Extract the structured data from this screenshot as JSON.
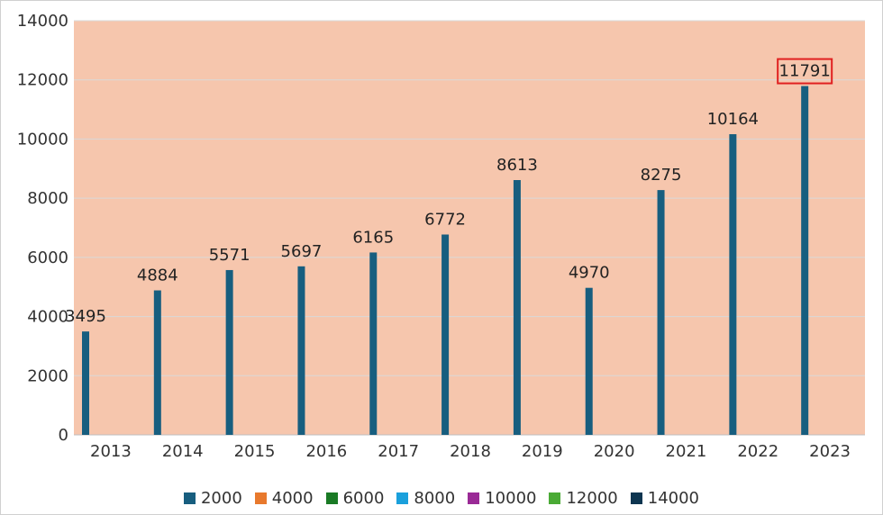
{
  "chart_data": {
    "type": "bar",
    "categories": [
      "2013",
      "2014",
      "2015",
      "2016",
      "2017",
      "2018",
      "2019",
      "2020",
      "2021",
      "2022",
      "2023"
    ],
    "series": [
      {
        "name": "2000",
        "values": [
          3495,
          4884,
          5571,
          5697,
          6165,
          6772,
          8613,
          4970,
          8275,
          10164,
          11791
        ]
      }
    ],
    "legend": [
      "2000",
      "4000",
      "6000",
      "8000",
      "10000",
      "12000",
      "14000"
    ],
    "legend_colors": [
      "#175e7f",
      "#e8792d",
      "#1a7a25",
      "#1aa0dc",
      "#9a2a96",
      "#4aaa35",
      "#0d3550"
    ],
    "yticks": [
      "0",
      "2000",
      "4000",
      "6000",
      "8000",
      "10000",
      "12000",
      "14000"
    ],
    "ylim": [
      0,
      14000
    ],
    "grid": true,
    "legend_position": "bottom",
    "plot_background": "#f6c6ad",
    "bar_color": "#175e7f",
    "highlight": {
      "category": "2023",
      "color": "#e02020"
    }
  }
}
